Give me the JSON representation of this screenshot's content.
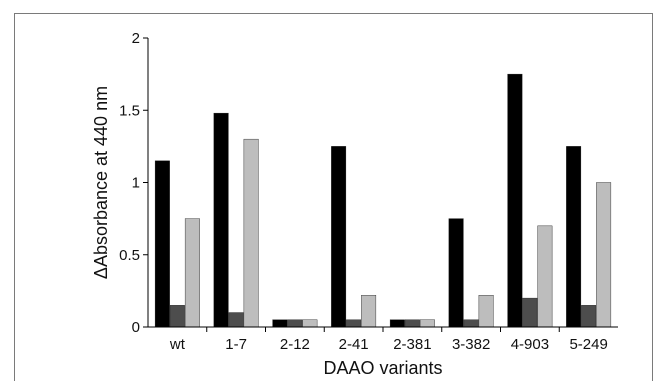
{
  "chart_data": {
    "type": "bar",
    "title": "",
    "xlabel": "DAAO variants",
    "ylabel_symbol": "Δ",
    "ylabel": "Absorbance at 440 nm",
    "ylim": [
      0,
      2
    ],
    "yticks": [
      "0",
      "0.5",
      "1",
      "1.5",
      "2"
    ],
    "grid": false,
    "legend": "none",
    "categories": [
      "wt",
      "1-7",
      "2-12",
      "2-41",
      "2-381",
      "3-382",
      "4-903",
      "5-249"
    ],
    "series": [
      {
        "color": "#000000",
        "values": [
          1.15,
          1.48,
          0.05,
          1.25,
          0.05,
          0.75,
          1.75,
          1.25
        ]
      },
      {
        "color": "#4d4d4d",
        "values": [
          0.15,
          0.1,
          0.05,
          0.05,
          0.05,
          0.05,
          0.2,
          0.15
        ]
      },
      {
        "color": "#bdbdbd",
        "values": [
          0.75,
          1.3,
          0.05,
          0.22,
          0.05,
          0.22,
          0.7,
          1.0
        ]
      }
    ]
  }
}
